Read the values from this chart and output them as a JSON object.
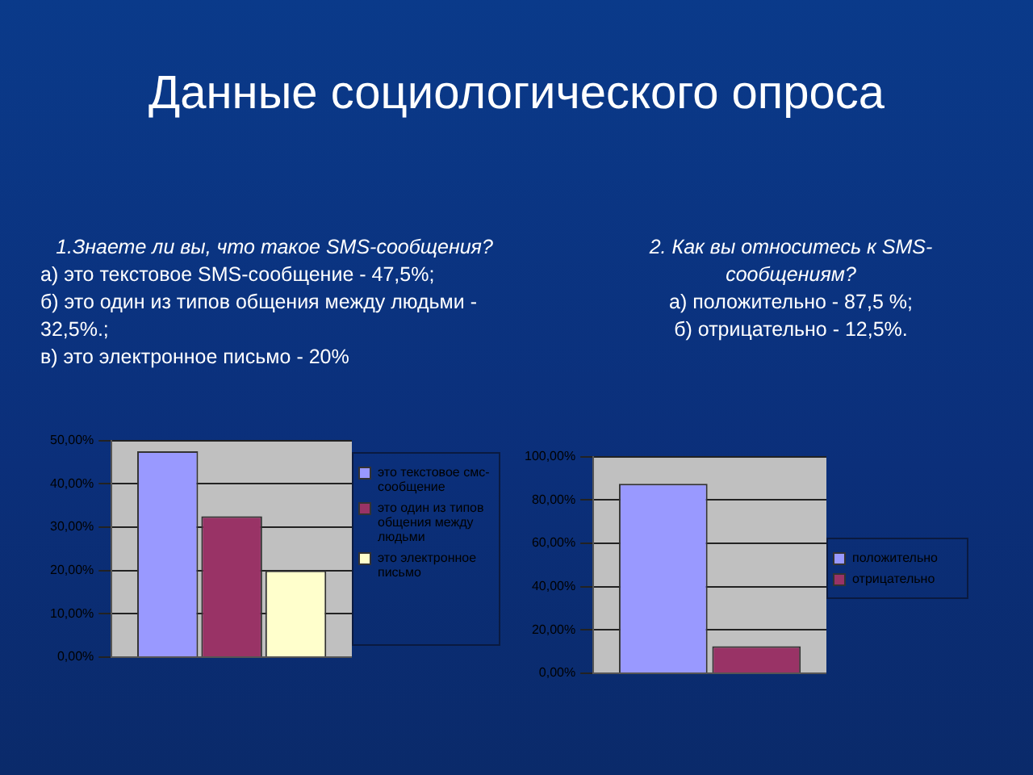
{
  "chart_data": [
    {
      "type": "bar",
      "title": "Данные социологического опроса",
      "subtitle": "1.Знаете ли вы, что такое SMS-сообщения?",
      "annotations": [
        "а) это текстовое SMS-сообщение - 47,5%;",
        "б) это один из типов общения между людьми - 32,5%.;",
        "в) это электронное письмо - 20%"
      ],
      "categories": [
        null
      ],
      "series": [
        {
          "name": "это текстовое смс-сообщение",
          "color": "#9999ff",
          "values": [
            47.5
          ]
        },
        {
          "name": "это один из типов общения между людьми",
          "color": "#993366",
          "values": [
            32.5
          ]
        },
        {
          "name": "это электронное письмо",
          "color": "#ffffcc",
          "values": [
            20
          ]
        }
      ],
      "ylim": [
        0,
        50
      ],
      "yticks": [
        {
          "value": 0,
          "label": "0,00%"
        },
        {
          "value": 10,
          "label": "10,00%"
        },
        {
          "value": 20,
          "label": "20,00%"
        },
        {
          "value": 30,
          "label": "30,00%"
        },
        {
          "value": 40,
          "label": "40,00%"
        },
        {
          "value": 50,
          "label": "50,00%"
        }
      ],
      "grid": "y",
      "legend": "right"
    },
    {
      "type": "bar",
      "subtitle": "2. Как вы относитесь к SMS-сообщениям?",
      "annotations": [
        "а) положительно - 87,5 %;",
        "б) отрицательно - 12,5%."
      ],
      "categories": [
        null
      ],
      "series": [
        {
          "name": "положительно",
          "color": "#9999ff",
          "values": [
            87.5
          ]
        },
        {
          "name": "отрицательно",
          "color": "#993366",
          "values": [
            12.5
          ]
        }
      ],
      "ylim": [
        0,
        100
      ],
      "yticks": [
        {
          "value": 0,
          "label": "0,00%"
        },
        {
          "value": 20,
          "label": "20,00%"
        },
        {
          "value": 40,
          "label": "40,00%"
        },
        {
          "value": 60,
          "label": "60,00%"
        },
        {
          "value": 80,
          "label": "80,00%"
        },
        {
          "value": 100,
          "label": "100,00%"
        }
      ],
      "grid": "y",
      "legend": "right"
    }
  ]
}
